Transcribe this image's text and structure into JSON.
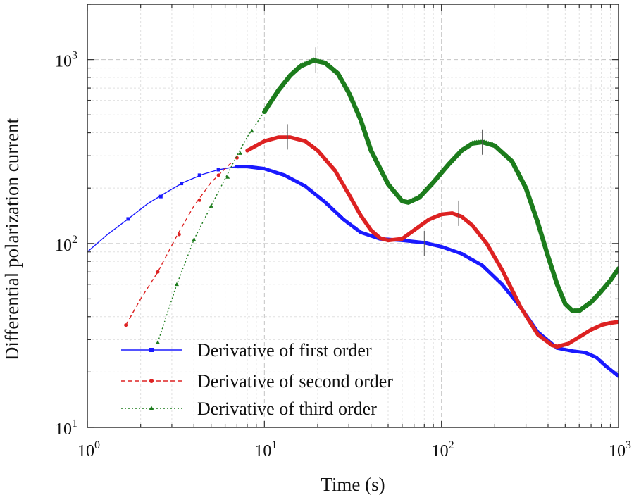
{
  "chart_data": {
    "type": "line",
    "title": "",
    "xlabel": "Time (s)",
    "ylabel": "Differential polarization current",
    "xscale": "log",
    "yscale": "log",
    "xlim": [
      1,
      1000
    ],
    "ylim": [
      10,
      2000
    ],
    "grid": true,
    "legend_position": "bottom-left",
    "x_ticks": [
      {
        "value": 1,
        "base": "10",
        "exp": "0"
      },
      {
        "value": 10,
        "base": "10",
        "exp": "1"
      },
      {
        "value": 100,
        "base": "10",
        "exp": "2"
      },
      {
        "value": 1000,
        "base": "10",
        "exp": "3"
      }
    ],
    "y_ticks": [
      {
        "value": 10,
        "base": "10",
        "exp": "1"
      },
      {
        "value": 100,
        "base": "10",
        "exp": "2"
      },
      {
        "value": 1000,
        "base": "10",
        "exp": "3"
      }
    ],
    "series": [
      {
        "name": "Derivative of first order",
        "color": "#1a1aff",
        "line_style": "solid",
        "marker": "square",
        "start_x": 1,
        "points": [
          [
            1,
            90
          ],
          [
            1.3,
            112
          ],
          [
            1.7,
            136
          ],
          [
            2.2,
            165
          ],
          [
            2.8,
            190
          ],
          [
            3.5,
            215
          ],
          [
            4.5,
            238
          ],
          [
            5.5,
            252
          ],
          [
            7,
            262
          ],
          [
            8,
            262
          ],
          [
            10,
            255
          ],
          [
            13,
            235
          ],
          [
            17,
            205
          ],
          [
            22,
            168
          ],
          [
            28,
            135
          ],
          [
            35,
            115
          ],
          [
            45,
            106
          ],
          [
            60,
            104
          ],
          [
            80,
            101
          ],
          [
            100,
            96
          ],
          [
            130,
            88
          ],
          [
            170,
            76
          ],
          [
            220,
            60
          ],
          [
            280,
            45
          ],
          [
            350,
            33
          ],
          [
            450,
            27
          ],
          [
            550,
            26
          ],
          [
            650,
            25.5
          ],
          [
            750,
            24
          ],
          [
            850,
            21.5
          ],
          [
            1000,
            19
          ]
        ],
        "markers": [
          [
            1.7,
            136
          ],
          [
            2.6,
            180
          ],
          [
            3.4,
            212
          ],
          [
            4.3,
            235
          ],
          [
            5.5,
            252
          ],
          [
            7,
            262
          ]
        ]
      },
      {
        "name": "Derivative of second order",
        "color": "#dd2222",
        "line_style": "dashed",
        "marker": "circle",
        "start_x": 1.65,
        "points": [
          [
            1.65,
            36
          ],
          [
            2,
            50
          ],
          [
            2.5,
            70
          ],
          [
            3.2,
            110
          ],
          [
            4,
            160
          ],
          [
            5,
            215
          ],
          [
            6.5,
            275
          ],
          [
            8,
            320
          ],
          [
            10,
            360
          ],
          [
            12,
            378
          ],
          [
            14,
            378
          ],
          [
            17,
            360
          ],
          [
            20,
            320
          ],
          [
            25,
            250
          ],
          [
            30,
            185
          ],
          [
            35,
            142
          ],
          [
            40,
            118
          ],
          [
            45,
            107
          ],
          [
            50,
            104
          ],
          [
            60,
            106
          ],
          [
            70,
            118
          ],
          [
            85,
            135
          ],
          [
            100,
            144
          ],
          [
            115,
            146
          ],
          [
            130,
            140
          ],
          [
            150,
            125
          ],
          [
            180,
            100
          ],
          [
            220,
            72
          ],
          [
            280,
            45
          ],
          [
            350,
            32
          ],
          [
            420,
            28
          ],
          [
            450,
            27.5
          ],
          [
            520,
            28.5
          ],
          [
            600,
            31
          ],
          [
            700,
            34
          ],
          [
            800,
            36
          ],
          [
            900,
            37
          ],
          [
            1000,
            37.5
          ]
        ],
        "markers": [
          [
            1.65,
            36
          ],
          [
            2.5,
            70
          ],
          [
            3.3,
            112
          ],
          [
            4.3,
            172
          ],
          [
            5.5,
            235
          ],
          [
            7,
            292
          ]
        ]
      },
      {
        "name": "Derivative of third order",
        "color": "#1c7c1c",
        "line_style": "dotted",
        "marker": "triangle",
        "start_x": 2.5,
        "points": [
          [
            2.5,
            29
          ],
          [
            3.2,
            60
          ],
          [
            4,
            105
          ],
          [
            5,
            160
          ],
          [
            6,
            225
          ],
          [
            7,
            300
          ],
          [
            8,
            380
          ],
          [
            10,
            520
          ],
          [
            12,
            680
          ],
          [
            14,
            820
          ],
          [
            16,
            920
          ],
          [
            19,
            990
          ],
          [
            22,
            960
          ],
          [
            26,
            840
          ],
          [
            30,
            660
          ],
          [
            35,
            470
          ],
          [
            40,
            320
          ],
          [
            50,
            210
          ],
          [
            60,
            170
          ],
          [
            65,
            167
          ],
          [
            75,
            178
          ],
          [
            90,
            215
          ],
          [
            110,
            270
          ],
          [
            130,
            320
          ],
          [
            150,
            350
          ],
          [
            170,
            356
          ],
          [
            200,
            340
          ],
          [
            250,
            280
          ],
          [
            300,
            200
          ],
          [
            350,
            130
          ],
          [
            400,
            85
          ],
          [
            450,
            60
          ],
          [
            500,
            47
          ],
          [
            550,
            43
          ],
          [
            600,
            43
          ],
          [
            700,
            48
          ],
          [
            800,
            55
          ],
          [
            900,
            63
          ],
          [
            1000,
            73
          ]
        ],
        "markers": [
          [
            2.5,
            29
          ],
          [
            3.2,
            60
          ],
          [
            4,
            105
          ],
          [
            5,
            160
          ],
          [
            6.2,
            230
          ],
          [
            7.3,
            310
          ],
          [
            8.5,
            410
          ],
          [
            10,
            520
          ]
        ]
      }
    ],
    "legend": [
      {
        "label": "Derivative of first order",
        "series_index": 0
      },
      {
        "label": "Derivative of second order",
        "series_index": 1
      },
      {
        "label": "Derivative of third order",
        "series_index": 2
      }
    ]
  }
}
